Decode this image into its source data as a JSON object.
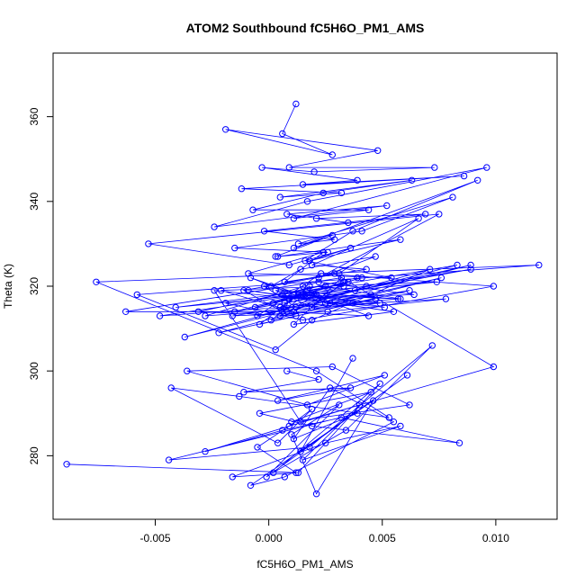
{
  "chart_data": {
    "type": "line",
    "title": "ATOM2 Southbound fC5H6O_PM1_AMS",
    "xlabel": "fC5H6O_PM1_AMS",
    "ylabel": "Theta (K)",
    "xlim": [
      -0.0095,
      0.0127
    ],
    "ylim": [
      265,
      375
    ],
    "xticks": [
      -0.005,
      0.0,
      0.005,
      0.01
    ],
    "xtick_labels": [
      "-0.005",
      "0.000",
      "0.005",
      "0.010"
    ],
    "yticks": [
      280,
      300,
      320,
      340,
      360
    ],
    "ytick_labels": [
      "280",
      "300",
      "320",
      "340",
      "360"
    ],
    "grid": false,
    "legend": "none",
    "series": [
      {
        "color": "#0000ff",
        "marker": "open-circle",
        "x": [
          -0.0089,
          0.0012,
          -0.0005,
          0.0009,
          0.0019,
          0.0004,
          -0.0043,
          -0.0013,
          0.0053,
          0.0021,
          -0.0076,
          0.0119,
          -0.0058,
          0.0003,
          0.0019,
          0.0071,
          -0.0037,
          0.0089,
          0.0005,
          0.0018,
          -0.0004,
          0.0062,
          0.0027,
          -0.0022,
          0.0047,
          0.0012,
          -0.0031,
          0.0039,
          0.0006,
          0.0083,
          -0.0005,
          0.0023,
          0.0099,
          0.0015,
          -0.0019,
          0.0043,
          0.0008,
          -0.0063,
          0.0032,
          0.0011,
          0.0055,
          -0.0009,
          0.0027,
          0.0076,
          0.0001,
          0.0016,
          -0.0041,
          0.0033,
          0.0009,
          0.0064,
          0.0022,
          -0.0028,
          0.0049,
          0.0013,
          -0.0015,
          0.0038,
          0.0007,
          0.0089,
          0.0019,
          -0.0006,
          0.0041,
          0.0015,
          -0.0048,
          0.0058,
          0.0025,
          0.0002,
          0.0035,
          0.0011,
          -0.0021,
          0.0074,
          0.0018,
          0.0044,
          0.0006,
          -0.0011,
          0.0029,
          0.0099,
          0.0014,
          -0.0024,
          0.0051,
          0.0021,
          0.0005,
          0.0037,
          -0.0002,
          0.0012,
          0.0078,
          0.0026,
          -0.0016,
          0.0045,
          0.0009,
          0.0033,
          0.0019,
          0.0003,
          0.0057,
          0.0011,
          -0.0008,
          0.0025,
          0.0015
        ],
        "y": [
          278,
          276,
          282,
          287,
          291,
          283,
          296,
          294,
          289,
          300,
          321,
          325,
          318,
          305,
          312,
          324,
          308,
          325,
          315,
          320,
          311,
          319,
          316,
          309,
          317,
          313,
          314,
          322,
          318,
          325,
          313,
          323,
          320,
          312,
          316,
          320,
          314,
          314,
          322,
          311,
          314,
          319,
          316,
          322,
          312,
          318,
          315,
          320,
          317,
          318,
          321,
          313,
          316,
          318,
          314,
          319,
          316,
          324,
          318,
          315,
          322,
          318,
          313,
          317,
          320,
          316,
          321,
          314,
          319,
          321,
          318,
          313,
          314,
          319,
          323,
          301,
          288,
          319,
          315,
          318,
          313,
          316,
          320,
          315,
          317,
          314,
          313,
          318,
          317,
          321,
          315,
          319,
          317,
          318,
          322,
          316,
          320
        ]
      },
      {
        "color": "#0000ff",
        "marker": "open-circle",
        "x": [
          0.0012,
          0.0006,
          0.0028,
          -0.0019,
          0.0048,
          0.0009,
          0.0073,
          0.002,
          -0.0003,
          0.0039,
          0.0015,
          0.0086,
          -0.0012,
          0.0032,
          0.0005,
          0.0063,
          0.0024,
          -0.0007,
          0.0044,
          0.0011,
          0.0096,
          0.0017,
          -0.0024,
          0.0052,
          0.0008,
          0.0035,
          0.0021,
          0.0069,
          -0.0002,
          0.0029,
          0.0013,
          0.0081,
          0.0041,
          -0.0015,
          0.0026,
          0.0004,
          0.0058,
          0.0018,
          0.0036,
          0.0009,
          -0.0053,
          0.0075,
          0.0022,
          0.0047,
          0.0014,
          0.0001,
          0.0031,
          0.0066,
          0.0019,
          0.0043,
          0.0007,
          0.0024,
          -0.0009,
          0.0054,
          0.0016,
          0.0037,
          0.0092,
          0.0011,
          0.0028,
          0.0003
        ],
        "y": [
          363,
          356,
          351,
          357,
          352,
          348,
          348,
          347,
          348,
          345,
          344,
          346,
          343,
          342,
          341,
          345,
          342,
          338,
          338,
          336,
          348,
          340,
          334,
          339,
          337,
          335,
          336,
          337,
          333,
          331,
          330,
          341,
          333,
          329,
          328,
          327,
          331,
          326,
          329,
          325,
          330,
          337,
          322,
          327,
          324,
          320,
          323,
          336,
          325,
          324,
          321,
          328,
          323,
          322,
          326,
          333,
          345,
          329,
          332,
          327
        ]
      },
      {
        "color": "#0000ff",
        "marker": "open-circle",
        "x": [
          0.0008,
          0.0022,
          -0.0011,
          0.0036,
          0.0004,
          0.0051,
          0.0017,
          -0.0036,
          0.0028,
          0.0062,
          0.001,
          0.0045,
          -0.0004,
          0.0019,
          0.0084,
          0.0032,
          0.0006,
          -0.0028,
          0.004,
          0.0015,
          0.0058,
          0.0025,
          -0.0016,
          0.0013,
          0.0049,
          0.0002,
          0.0034,
          0.0072,
          0.0018,
          -0.0044,
          0.0039,
          0.0011,
          0.0027,
          0.0055,
          0.0007,
          -0.0008,
          0.0046,
          0.0021,
          0.001,
          0.0031,
          -0.0001,
          0.0061,
          0.0014,
          0.0037
        ],
        "y": [
          300,
          298,
          295,
          296,
          293,
          299,
          292,
          300,
          301,
          292,
          288,
          295,
          290,
          287,
          283,
          289,
          286,
          281,
          292,
          279,
          287,
          283,
          275,
          276,
          297,
          276,
          286,
          306,
          282,
          279,
          290,
          284,
          296,
          288,
          275,
          273,
          293,
          271,
          285,
          292,
          275,
          299,
          281,
          303
        ]
      }
    ]
  }
}
